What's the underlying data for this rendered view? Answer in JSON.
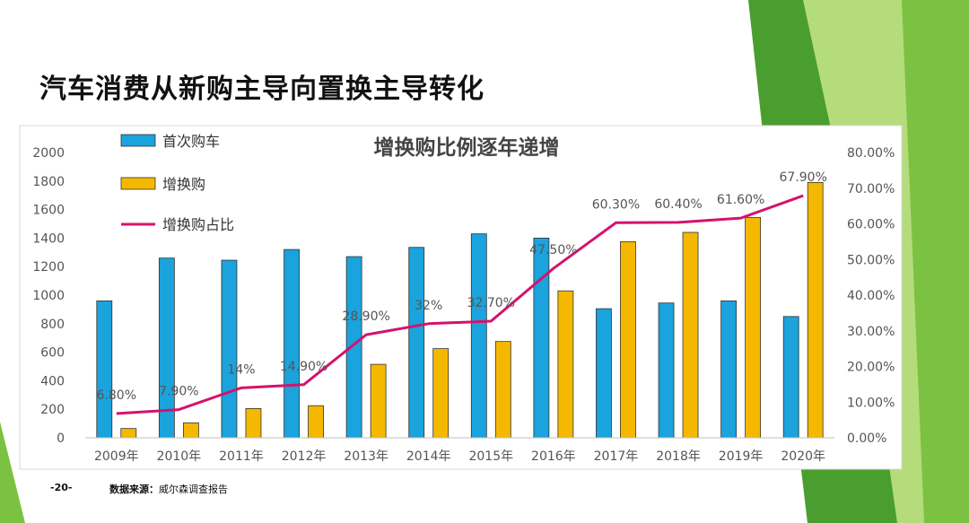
{
  "slide": {
    "title": "汽车消费从新购主导向置换主导转化",
    "page_number": "-20-",
    "source_label": "数据来源：",
    "source_text": "威尔森调查报告",
    "colors": {
      "green_dark": "#4a9e2f",
      "green_mid": "#7cc242",
      "green_light": "#b5dc7a"
    }
  },
  "chart_data": {
    "type": "bar",
    "title": "增换购比例逐年递增",
    "categories": [
      "2009年",
      "2010年",
      "2011年",
      "2012年",
      "2013年",
      "2014年",
      "2015年",
      "2016年",
      "2017年",
      "2018年",
      "2019年",
      "2020年"
    ],
    "series": [
      {
        "name": "首次购车",
        "kind": "bar",
        "axis": "left",
        "color": "#1aa3dc",
        "values": [
          960,
          1260,
          1245,
          1320,
          1270,
          1335,
          1430,
          1400,
          905,
          945,
          960,
          850
        ]
      },
      {
        "name": "增换购",
        "kind": "bar",
        "axis": "left",
        "color": "#f5b800",
        "values": [
          65,
          105,
          205,
          225,
          515,
          625,
          675,
          1030,
          1375,
          1440,
          1545,
          1790
        ]
      },
      {
        "name": "增换购占比",
        "kind": "line",
        "axis": "right",
        "color": "#d4126e",
        "values": [
          6.8,
          7.9,
          14,
          14.9,
          28.9,
          32,
          32.7,
          47.5,
          60.3,
          60.4,
          61.6,
          67.9
        ],
        "labels": [
          "6.80%",
          "7.90%",
          "14%",
          "14.90%",
          "28.90%",
          "32%",
          "32.70%",
          "47.50%",
          "60.30%",
          "60.40%",
          "61.60%",
          "67.90%"
        ]
      }
    ],
    "y_left": {
      "min": 0,
      "max": 2000,
      "ticks": [
        "0",
        "200",
        "400",
        "600",
        "800",
        "1000",
        "1200",
        "1400",
        "1600",
        "1800",
        "2000"
      ]
    },
    "y_right": {
      "min": 0,
      "max": 80,
      "ticks": [
        "0.00%",
        "10.00%",
        "20.00%",
        "30.00%",
        "40.00%",
        "50.00%",
        "60.00%",
        "70.00%",
        "80.00%"
      ]
    },
    "grid": false,
    "legend_position": "top-left"
  }
}
